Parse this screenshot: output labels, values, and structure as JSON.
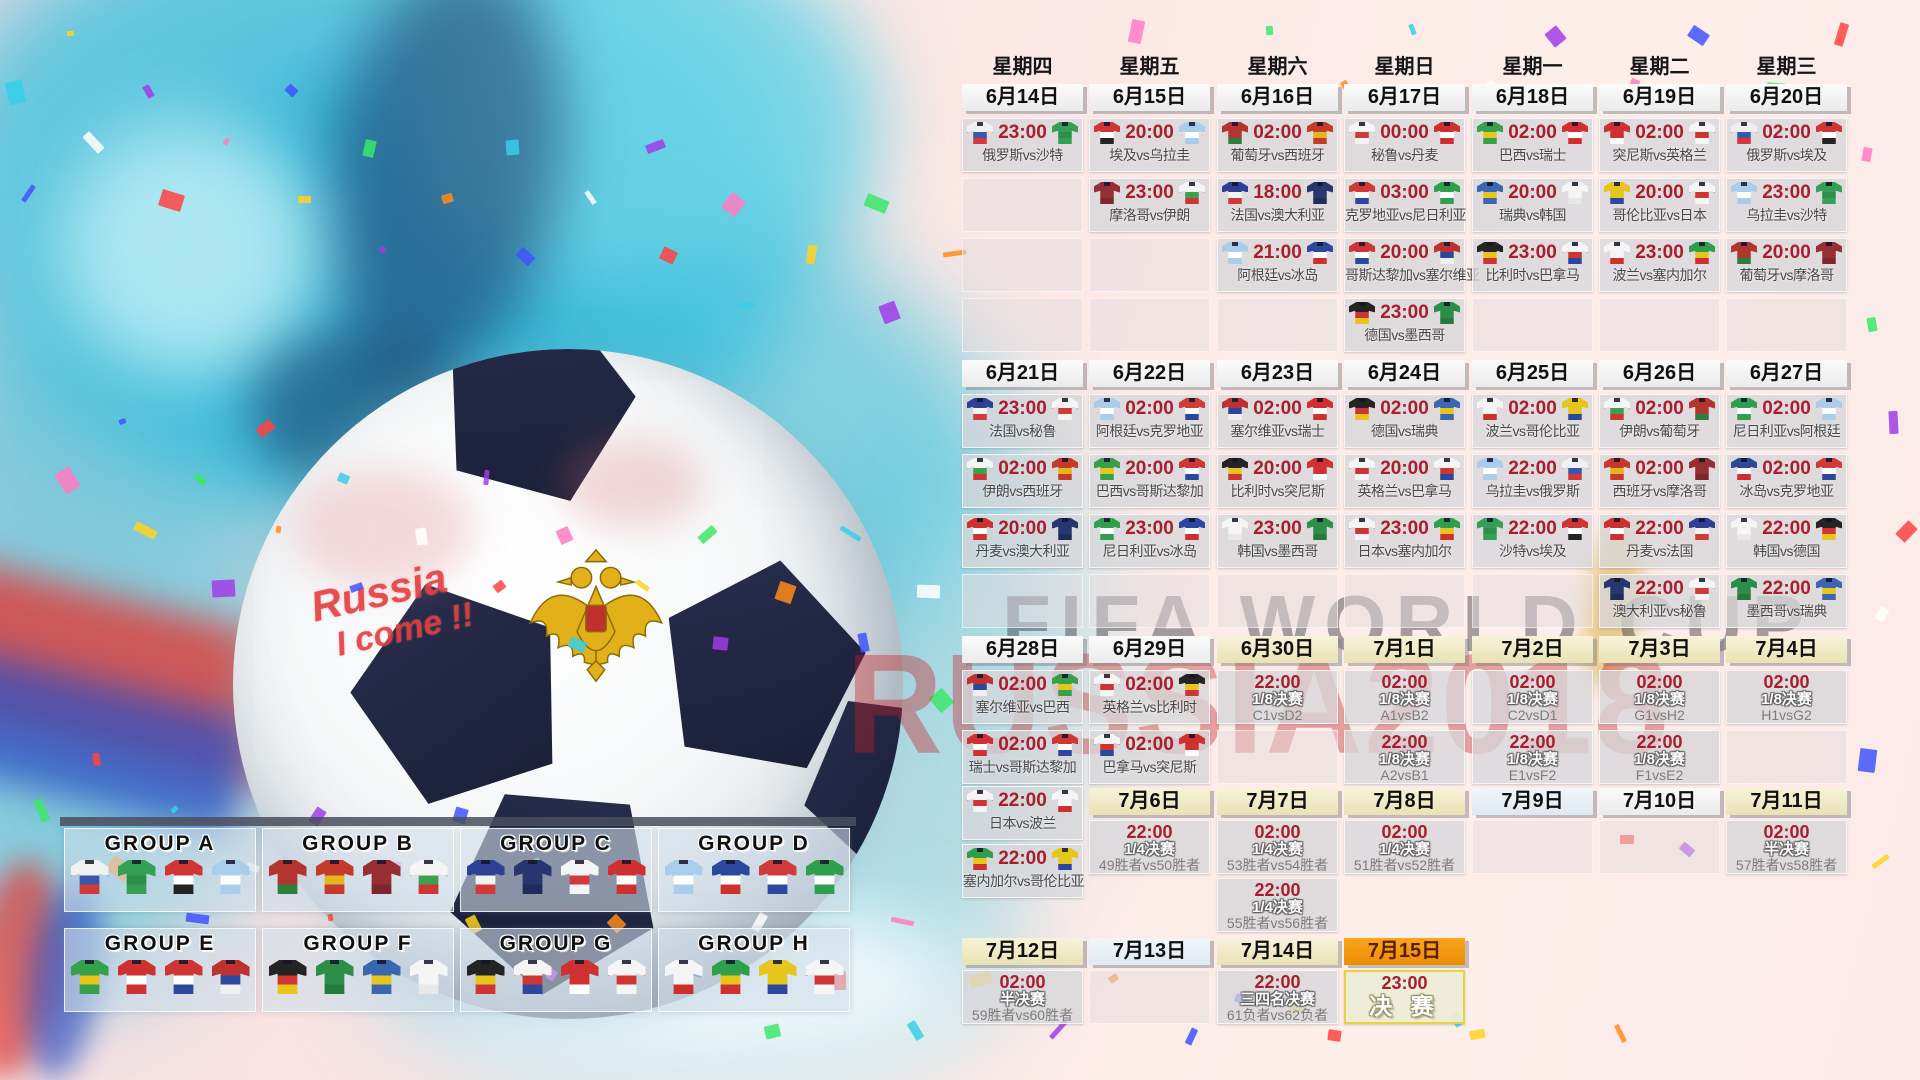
{
  "watermarks": {
    "line1": "FIFA WORLD CUP",
    "line2": "RUSSIA2018"
  },
  "ball": {
    "graffiti_line1": "Russia",
    "graffiti_line2": "I come !!"
  },
  "weekdays": [
    "星期四",
    "星期五",
    "星期六",
    "星期日",
    "星期一",
    "星期二",
    "星期三"
  ],
  "colors": {
    "time_red": "#a81e2c",
    "date_tan": "#efe9c4",
    "date_orange": "#f29a12",
    "date_blue": "#e2ebf3",
    "cell_gray": "#d6d6da",
    "pink_bg": "#fbe7e6",
    "teal_splash": "#3ec0da"
  },
  "sections": [
    {
      "dates": [
        {
          "label": "6月14日",
          "style": "plain"
        },
        {
          "label": "6月15日",
          "style": "plain"
        },
        {
          "label": "6月16日",
          "style": "plain"
        },
        {
          "label": "6月17日",
          "style": "plain"
        },
        {
          "label": "6月18日",
          "style": "plain"
        },
        {
          "label": "6月19日",
          "style": "plain"
        },
        {
          "label": "6月20日",
          "style": "plain"
        }
      ],
      "columns": [
        [
          {
            "type": "match",
            "time": "23:00",
            "home": "俄罗斯",
            "away": "沙特",
            "label": "俄罗斯vs沙特"
          },
          {
            "type": "empty"
          },
          {
            "type": "empty"
          },
          {
            "type": "empty"
          }
        ],
        [
          {
            "type": "match",
            "time": "20:00",
            "home": "埃及",
            "away": "乌拉圭",
            "label": "埃及vs乌拉圭"
          },
          {
            "type": "match",
            "time": "23:00",
            "home": "摩洛哥",
            "away": "伊朗",
            "label": "摩洛哥vs伊朗"
          },
          {
            "type": "empty"
          },
          {
            "type": "empty"
          }
        ],
        [
          {
            "type": "match",
            "time": "02:00",
            "home": "葡萄牙",
            "away": "西班牙",
            "label": "葡萄牙vs西班牙"
          },
          {
            "type": "match",
            "time": "18:00",
            "home": "法国",
            "away": "澳大利亚",
            "label": "法国vs澳大利亚"
          },
          {
            "type": "match",
            "time": "21:00",
            "home": "阿根廷",
            "away": "冰岛",
            "label": "阿根廷vs冰岛"
          },
          {
            "type": "empty"
          }
        ],
        [
          {
            "type": "match",
            "time": "00:00",
            "home": "秘鲁",
            "away": "丹麦",
            "label": "秘鲁vs丹麦"
          },
          {
            "type": "match",
            "time": "03:00",
            "home": "克罗地亚",
            "away": "尼日利亚",
            "label": "克罗地亚vs尼日利亚"
          },
          {
            "type": "match",
            "time": "20:00",
            "home": "哥斯达黎加",
            "away": "塞尔维亚",
            "label": "哥斯达黎加vs塞尔维亚"
          },
          {
            "type": "match",
            "time": "23:00",
            "home": "德国",
            "away": "墨西哥",
            "label": "德国vs墨西哥"
          }
        ],
        [
          {
            "type": "match",
            "time": "02:00",
            "home": "巴西",
            "away": "瑞士",
            "label": "巴西vs瑞士"
          },
          {
            "type": "match",
            "time": "20:00",
            "home": "瑞典",
            "away": "韩国",
            "label": "瑞典vs韩国"
          },
          {
            "type": "match",
            "time": "23:00",
            "home": "比利时",
            "away": "巴拿马",
            "label": "比利时vs巴拿马"
          },
          {
            "type": "empty"
          }
        ],
        [
          {
            "type": "match",
            "time": "02:00",
            "home": "突尼斯",
            "away": "英格兰",
            "label": "突尼斯vs英格兰"
          },
          {
            "type": "match",
            "time": "20:00",
            "home": "哥伦比亚",
            "away": "日本",
            "label": "哥伦比亚vs日本"
          },
          {
            "type": "match",
            "time": "23:00",
            "home": "波兰",
            "away": "塞内加尔",
            "label": "波兰vs塞内加尔"
          },
          {
            "type": "empty"
          }
        ],
        [
          {
            "type": "match",
            "time": "02:00",
            "home": "俄罗斯",
            "away": "埃及",
            "label": "俄罗斯vs埃及"
          },
          {
            "type": "match",
            "time": "23:00",
            "home": "乌拉圭",
            "away": "沙特",
            "label": "乌拉圭vs沙特"
          },
          {
            "type": "match",
            "time": "20:00",
            "home": "葡萄牙",
            "away": "摩洛哥",
            "label": "葡萄牙vs摩洛哥"
          },
          {
            "type": "empty"
          }
        ]
      ]
    },
    {
      "dates": [
        {
          "label": "6月21日",
          "style": "plain"
        },
        {
          "label": "6月22日",
          "style": "plain"
        },
        {
          "label": "6月23日",
          "style": "plain"
        },
        {
          "label": "6月24日",
          "style": "plain"
        },
        {
          "label": "6月25日",
          "style": "plain"
        },
        {
          "label": "6月26日",
          "style": "plain"
        },
        {
          "label": "6月27日",
          "style": "plain"
        }
      ],
      "columns": [
        [
          {
            "type": "match",
            "time": "23:00",
            "home": "法国",
            "away": "秘鲁",
            "label": "法国vs秘鲁"
          },
          {
            "type": "match",
            "time": "02:00",
            "home": "伊朗",
            "away": "西班牙",
            "label": "伊朗vs西班牙"
          },
          {
            "type": "match",
            "time": "20:00",
            "home": "丹麦",
            "away": "澳大利亚",
            "label": "丹麦vs澳大利亚"
          },
          {
            "type": "empty"
          }
        ],
        [
          {
            "type": "match",
            "time": "02:00",
            "home": "阿根廷",
            "away": "克罗地亚",
            "label": "阿根廷vs克罗地亚"
          },
          {
            "type": "match",
            "time": "20:00",
            "home": "巴西",
            "away": "哥斯达黎加",
            "label": "巴西vs哥斯达黎加"
          },
          {
            "type": "match",
            "time": "23:00",
            "home": "尼日利亚",
            "away": "冰岛",
            "label": "尼日利亚vs冰岛"
          },
          {
            "type": "empty"
          }
        ],
        [
          {
            "type": "match",
            "time": "02:00",
            "home": "塞尔维亚",
            "away": "瑞士",
            "label": "塞尔维亚vs瑞士"
          },
          {
            "type": "match",
            "time": "20:00",
            "home": "比利时",
            "away": "突尼斯",
            "label": "比利时vs突尼斯"
          },
          {
            "type": "match",
            "time": "23:00",
            "home": "韩国",
            "away": "墨西哥",
            "label": "韩国vs墨西哥"
          },
          {
            "type": "empty"
          }
        ],
        [
          {
            "type": "match",
            "time": "02:00",
            "home": "德国",
            "away": "瑞典",
            "label": "德国vs瑞典"
          },
          {
            "type": "match",
            "time": "20:00",
            "home": "英格兰",
            "away": "巴拿马",
            "label": "英格兰vs巴拿马"
          },
          {
            "type": "match",
            "time": "23:00",
            "home": "日本",
            "away": "塞内加尔",
            "label": "日本vs塞内加尔"
          },
          {
            "type": "empty"
          }
        ],
        [
          {
            "type": "match",
            "time": "02:00",
            "home": "波兰",
            "away": "哥伦比亚",
            "label": "波兰vs哥伦比亚"
          },
          {
            "type": "match",
            "time": "22:00",
            "home": "乌拉圭",
            "away": "俄罗斯",
            "label": "乌拉圭vs俄罗斯"
          },
          {
            "type": "match",
            "time": "22:00",
            "home": "沙特",
            "away": "埃及",
            "label": "沙特vs埃及"
          },
          {
            "type": "empty"
          }
        ],
        [
          {
            "type": "match",
            "time": "02:00",
            "home": "伊朗",
            "away": "葡萄牙",
            "label": "伊朗vs葡萄牙"
          },
          {
            "type": "match",
            "time": "02:00",
            "home": "西班牙",
            "away": "摩洛哥",
            "label": "西班牙vs摩洛哥"
          },
          {
            "type": "match",
            "time": "22:00",
            "home": "丹麦",
            "away": "法国",
            "label": "丹麦vs法国"
          },
          {
            "type": "match",
            "time": "22:00",
            "home": "澳大利亚",
            "away": "秘鲁",
            "label": "澳大利亚vs秘鲁"
          }
        ],
        [
          {
            "type": "match",
            "time": "02:00",
            "home": "尼日利亚",
            "away": "阿根廷",
            "label": "尼日利亚vs阿根廷"
          },
          {
            "type": "match",
            "time": "02:00",
            "home": "冰岛",
            "away": "克罗地亚",
            "label": "冰岛vs克罗地亚"
          },
          {
            "type": "match",
            "time": "22:00",
            "home": "韩国",
            "away": "德国",
            "label": "韩国vs德国"
          },
          {
            "type": "match",
            "time": "22:00",
            "home": "墨西哥",
            "away": "瑞典",
            "label": "墨西哥vs瑞典"
          }
        ]
      ]
    },
    {
      "dates": [
        {
          "label": "6月28日",
          "style": "plain"
        },
        {
          "label": "6月29日",
          "style": "plain"
        },
        {
          "label": "6月30日",
          "style": "tan"
        },
        {
          "label": "7月1日",
          "style": "tan"
        },
        {
          "label": "7月2日",
          "style": "tan"
        },
        {
          "label": "7月3日",
          "style": "tan"
        },
        {
          "label": "7月4日",
          "style": "tan"
        }
      ],
      "columns": [
        [
          {
            "type": "match",
            "time": "02:00",
            "home": "塞尔维亚",
            "away": "巴西",
            "label": "塞尔维亚vs巴西"
          },
          {
            "type": "match",
            "time": "02:00",
            "home": "瑞士",
            "away": "哥斯达黎加",
            "label": "瑞士vs哥斯达黎加"
          }
        ],
        [
          {
            "type": "match",
            "time": "02:00",
            "home": "英格兰",
            "away": "比利时",
            "label": "英格兰vs比利时"
          },
          {
            "type": "match",
            "time": "02:00",
            "home": "巴拿马",
            "away": "突尼斯",
            "label": "巴拿马vs突尼斯"
          }
        ],
        [
          {
            "type": "ko",
            "time": "22:00",
            "stage": "1/8决赛",
            "detail": "C1vsD2"
          },
          {
            "type": "empty"
          }
        ],
        [
          {
            "type": "ko",
            "time": "02:00",
            "stage": "1/8决赛",
            "detail": "A1vsB2"
          },
          {
            "type": "ko",
            "time": "22:00",
            "stage": "1/8决赛",
            "detail": "A2vsB1"
          }
        ],
        [
          {
            "type": "ko",
            "time": "02:00",
            "stage": "1/8决赛",
            "detail": "C2vsD1"
          },
          {
            "type": "ko",
            "time": "22:00",
            "stage": "1/8决赛",
            "detail": "E1vsF2"
          }
        ],
        [
          {
            "type": "ko",
            "time": "02:00",
            "stage": "1/8决赛",
            "detail": "G1vsH2"
          },
          {
            "type": "ko",
            "time": "22:00",
            "stage": "1/8决赛",
            "detail": "F1vsE2"
          }
        ],
        [
          {
            "type": "ko",
            "time": "02:00",
            "stage": "1/8决赛",
            "detail": "H1vsG2"
          },
          {
            "type": "empty"
          }
        ]
      ]
    },
    {
      "col_start": 1,
      "dates": [
        {
          "label": "7月6日",
          "style": "tan"
        },
        {
          "label": "7月7日",
          "style": "tan"
        },
        {
          "label": "7月8日",
          "style": "tan"
        },
        {
          "label": "7月9日",
          "style": "blue"
        },
        {
          "label": "7月10日",
          "style": "plain"
        },
        {
          "label": "7月11日",
          "style": "tan"
        }
      ],
      "col0_matches": [
        {
          "type": "match",
          "time": "22:00",
          "home": "日本",
          "away": "波兰",
          "label": "日本vs波兰"
        },
        {
          "type": "match",
          "time": "22:00",
          "home": "塞内加尔",
          "away": "哥伦比亚",
          "label": "塞内加尔vs哥伦比亚"
        }
      ],
      "columns": [
        [
          {
            "type": "ko",
            "time": "22:00",
            "stage": "1/4决赛",
            "detail": "49胜者vs50胜者"
          }
        ],
        [
          {
            "type": "ko",
            "time": "02:00",
            "stage": "1/4决赛",
            "detail": "53胜者vs54胜者"
          },
          {
            "type": "ko",
            "time": "22:00",
            "stage": "1/4决赛",
            "detail": "55胜者vs56胜者"
          }
        ],
        [
          {
            "type": "ko",
            "time": "02:00",
            "stage": "1/4决赛",
            "detail": "51胜者vs52胜者"
          }
        ],
        [
          {
            "type": "empty"
          }
        ],
        [
          {
            "type": "empty"
          }
        ],
        [
          {
            "type": "ko",
            "time": "02:00",
            "stage": "半决赛",
            "detail": "57胜者vs58胜者"
          }
        ]
      ]
    },
    {
      "dates": [
        {
          "label": "7月12日",
          "style": "tan"
        },
        {
          "label": "7月13日",
          "style": "blue"
        },
        {
          "label": "7月14日",
          "style": "tan"
        },
        {
          "label": "7月15日",
          "style": "orange"
        }
      ],
      "columns": [
        [
          {
            "type": "ko",
            "time": "02:00",
            "stage": "半决赛",
            "detail": "59胜者vs60胜者"
          }
        ],
        [
          {
            "type": "empty"
          }
        ],
        [
          {
            "type": "ko",
            "time": "22:00",
            "stage": "三四名决赛",
            "detail": "61负者vs62负者"
          }
        ],
        [
          {
            "type": "final",
            "time": "23:00",
            "stage": "决 赛"
          }
        ]
      ]
    }
  ],
  "groups": [
    {
      "name": "GROUP A",
      "teams": [
        "俄罗斯",
        "沙特",
        "埃及",
        "乌拉圭"
      ]
    },
    {
      "name": "GROUP B",
      "teams": [
        "葡萄牙",
        "西班牙",
        "摩洛哥",
        "伊朗"
      ]
    },
    {
      "name": "GROUP C",
      "teams": [
        "法国",
        "澳大利亚",
        "秘鲁",
        "丹麦"
      ]
    },
    {
      "name": "GROUP D",
      "teams": [
        "阿根廷",
        "冰岛",
        "克罗地亚",
        "尼日利亚"
      ]
    },
    {
      "name": "GROUP E",
      "teams": [
        "巴西",
        "瑞士",
        "哥斯达黎加",
        "塞尔维亚"
      ]
    },
    {
      "name": "GROUP F",
      "teams": [
        "德国",
        "墨西哥",
        "瑞典",
        "韩国"
      ]
    },
    {
      "name": "GROUP G",
      "teams": [
        "比利时",
        "巴拿马",
        "突尼斯",
        "英格兰"
      ]
    },
    {
      "name": "GROUP H",
      "teams": [
        "波兰",
        "塞内加尔",
        "哥伦比亚",
        "日本"
      ]
    }
  ],
  "team_colors": {
    "俄罗斯": [
      "#f0f0f0",
      "#3a57a8",
      "#d03a3a"
    ],
    "沙特": [
      "#33a055",
      "#2c9049",
      "#33a055"
    ],
    "埃及": [
      "#cf3535",
      "#ffffff",
      "#232323"
    ],
    "乌拉圭": [
      "#a9cdea",
      "#ffffff",
      "#a9cdea"
    ],
    "葡萄牙": [
      "#b43530",
      "#b43530",
      "#2e7e3c"
    ],
    "西班牙": [
      "#c63a2c",
      "#e3b51e",
      "#c63a2c"
    ],
    "摩洛哥": [
      "#962e34",
      "#962e34",
      "#7e262c"
    ],
    "伊朗": [
      "#f5f5f5",
      "#3da04c",
      "#cf3535"
    ],
    "法国": [
      "#2e3f96",
      "#f2f2f2",
      "#d03a3a"
    ],
    "澳大利亚": [
      "#27366e",
      "#27366e",
      "#1f2c5c"
    ],
    "秘鲁": [
      "#f5f5f5",
      "#d03a3a",
      "#f5f5f5"
    ],
    "丹麦": [
      "#ce2f2f",
      "#ffffff",
      "#ce2f2f"
    ],
    "阿根廷": [
      "#a9cdea",
      "#ffffff",
      "#a9cdea"
    ],
    "冰岛": [
      "#2c489e",
      "#ffffff",
      "#ce2f2f"
    ],
    "克罗地亚": [
      "#d03a3a",
      "#ffffff",
      "#2c489e"
    ],
    "尼日利亚": [
      "#2f9e4d",
      "#ffffff",
      "#2f9e4d"
    ],
    "巴西": [
      "#37a04b",
      "#e6c61c",
      "#37a04b"
    ],
    "瑞士": [
      "#d03030",
      "#ffffff",
      "#d03030"
    ],
    "哥斯达黎加": [
      "#ce3535",
      "#ffffff",
      "#2c489e"
    ],
    "塞尔维亚": [
      "#bf3030",
      "#2c489e",
      "#f0f0f0"
    ],
    "德国": [
      "#242424",
      "#cf3535",
      "#e6c61c"
    ],
    "墨西哥": [
      "#2c8e49",
      "#2c8e49",
      "#257a3e"
    ],
    "瑞典": [
      "#3a67b0",
      "#e6c61c",
      "#3a67b0"
    ],
    "韩国": [
      "#f5f5f5",
      "#f5f5f5",
      "#e8e8e8"
    ],
    "比利时": [
      "#242424",
      "#e6c61c",
      "#cf3535"
    ],
    "巴拿马": [
      "#f5f5f5",
      "#cf3535",
      "#2c489e"
    ],
    "突尼斯": [
      "#cf3030",
      "#cf3030",
      "#ffffff"
    ],
    "英格兰": [
      "#f5f5f5",
      "#cf3535",
      "#f5f5f5"
    ],
    "波兰": [
      "#f5f5f5",
      "#f5f5f5",
      "#ce2f2f"
    ],
    "塞内加尔": [
      "#2f9e4d",
      "#e6c61c",
      "#ce2f2f"
    ],
    "哥伦比亚": [
      "#e6c61c",
      "#e6c61c",
      "#2c489e"
    ],
    "日本": [
      "#f5f5f5",
      "#cf3535",
      "#f5f5f5"
    ]
  }
}
